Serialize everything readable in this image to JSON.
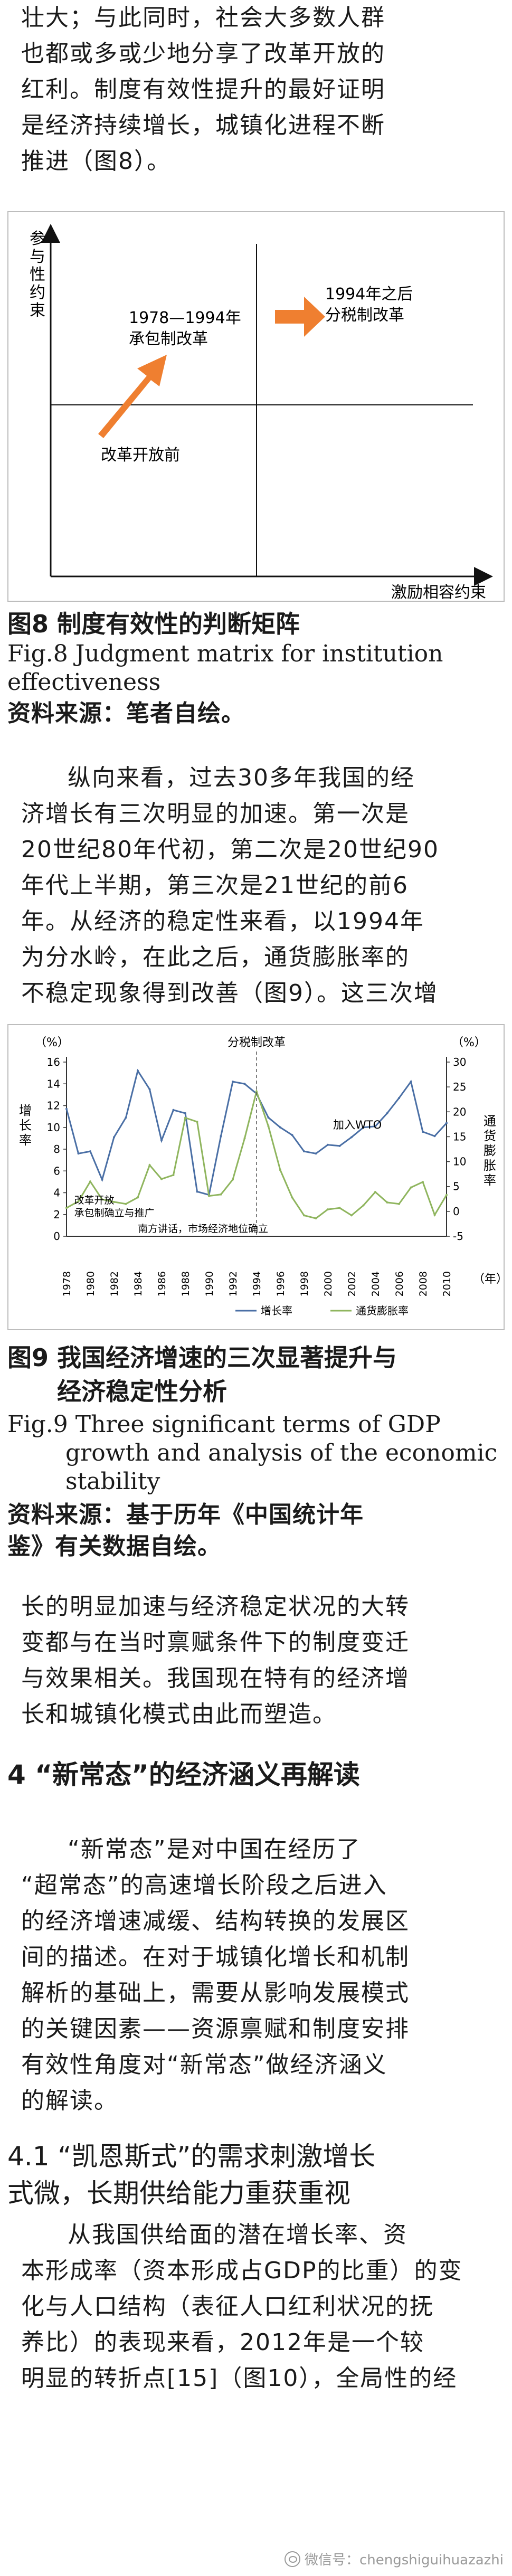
{
  "article": {
    "para1": [
      "壮大；与此同时，社会大多数人群",
      "也都或多或少地分享了改革开放的",
      "红利。制度有效性提升的最好证明",
      "是经济持续增长，城镇化进程不断",
      "推进（图8）。"
    ],
    "para2": [
      "纵向来看，过去30多年我国的经",
      "济增长有三次明显的加速。第一次是",
      "20世纪80年代初，第二次是20世纪90",
      "年代上半期，第三次是21世纪的前6",
      "年。从经济的稳定性来看，以1994年",
      "为分水岭，在此之后，通货膨胀率的",
      "不稳定现象得到改善（图9）。这三次增"
    ],
    "para3": [
      "长的明显加速与经济稳定状况的大转",
      "变都与在当时禀赋条件下的制度变迁",
      "与效果相关。我国现在特有的经济增",
      "长和城镇化模式由此而塑造。"
    ],
    "section4_title": "4 “新常态”的经济涵义再解读",
    "para4": [
      "“新常态”是对中国在经历了",
      "“超常态”的高速增长阶段之后进入",
      "的经济增速减缓、结构转换的发展区",
      "间的描述。在对于城镇化增长和机制",
      "解析的基础上，需要从影响发展模式",
      "的关键因素——资源禀赋和制度安排",
      "有效性角度对“新常态”做经济涵义",
      "的解读。"
    ],
    "section41_title": [
      "4.1 “凯恩斯式”的需求刺激增长",
      "式微，长期供给能力重获重视"
    ],
    "para5": [
      "从我国供给面的潜在增长率、资",
      "本形成率（资本形成占GDP的比重）的变",
      "化与人口结构（表征人口红利状况的抚",
      "养比）的表现来看，2012年是一个较",
      "明显的转折点[15]（图10），全局性的经"
    ]
  },
  "fig8": {
    "y_axis_label": "参与性约束",
    "x_axis_label": "激励相容约束",
    "label_start": "改革开放前",
    "label_mid": [
      "1978—1994年",
      "承包制改革"
    ],
    "label_late": [
      "1994年之后",
      "分税制改革"
    ],
    "arrow_color": "#ef7f30",
    "caption_cn": "图8  制度有效性的判断矩阵",
    "caption_en": [
      "Fig.8 Judgment matrix for institution",
      "effectiveness"
    ],
    "source": "资料来源：笔者自绘。"
  },
  "fig9": {
    "caption_cn": [
      "图9  我国经济增速的三次显著提升与",
      "经济稳定性分析"
    ],
    "caption_en": [
      "Fig.9 Three significant terms of GDP",
      "growth and analysis of the economic",
      "stability"
    ],
    "source": [
      "资料来源：基于历年《中国统计年",
      "鉴》有关数据自绘。"
    ]
  },
  "chart_data": {
    "type": "line",
    "x": [
      1978,
      1979,
      1980,
      1981,
      1982,
      1983,
      1984,
      1985,
      1986,
      1987,
      1988,
      1989,
      1990,
      1991,
      1992,
      1993,
      1994,
      1995,
      1996,
      1997,
      1998,
      1999,
      2000,
      2001,
      2002,
      2003,
      2004,
      2005,
      2006,
      2007,
      2008,
      2009,
      2010
    ],
    "x_unit": "（年）",
    "left_axis": {
      "label": "增长率",
      "unit": "（%）",
      "ylim": [
        0,
        16
      ],
      "ticks": [
        0,
        2,
        4,
        6,
        8,
        10,
        12,
        14,
        16
      ]
    },
    "right_axis": {
      "label": "通货膨胀率",
      "unit": "（%）",
      "ylim": [
        -5,
        30
      ],
      "ticks": [
        -5,
        0,
        5,
        10,
        15,
        20,
        25,
        30
      ]
    },
    "series": [
      {
        "name": "增长率",
        "axis": "left",
        "color": "#4a6fa5",
        "values": [
          11.7,
          7.6,
          7.8,
          5.2,
          9.1,
          10.9,
          15.2,
          13.5,
          8.8,
          11.6,
          11.3,
          4.1,
          3.8,
          9.2,
          14.2,
          14.0,
          13.1,
          10.9,
          10.0,
          9.3,
          7.8,
          7.6,
          8.4,
          8.3,
          9.1,
          10.0,
          10.1,
          11.3,
          12.7,
          14.2,
          9.6,
          9.2,
          10.4
        ]
      },
      {
        "name": "通货膨胀率",
        "axis": "right",
        "color": "#8fb55e",
        "values": [
          0.7,
          2.0,
          6.0,
          2.4,
          1.9,
          1.5,
          2.8,
          9.3,
          6.5,
          7.3,
          18.8,
          18.0,
          3.1,
          3.4,
          6.4,
          14.7,
          24.1,
          17.1,
          8.3,
          2.8,
          -0.8,
          -1.4,
          0.4,
          0.7,
          -0.8,
          1.2,
          3.9,
          1.8,
          1.5,
          4.8,
          5.9,
          -0.7,
          3.3
        ]
      }
    ],
    "annotations": {
      "tax_reform": "分税制改革",
      "reform_open": [
        "改革开放",
        "承包制确立与推广"
      ],
      "south_talk": "南方讲话，市场经济地位确立",
      "wto": "加入WTO"
    },
    "legend": [
      "增长率",
      "通货膨胀率"
    ],
    "legend_position": "bottom",
    "grid": false
  },
  "watermark": "微信号：chengshiguihuazazhi"
}
